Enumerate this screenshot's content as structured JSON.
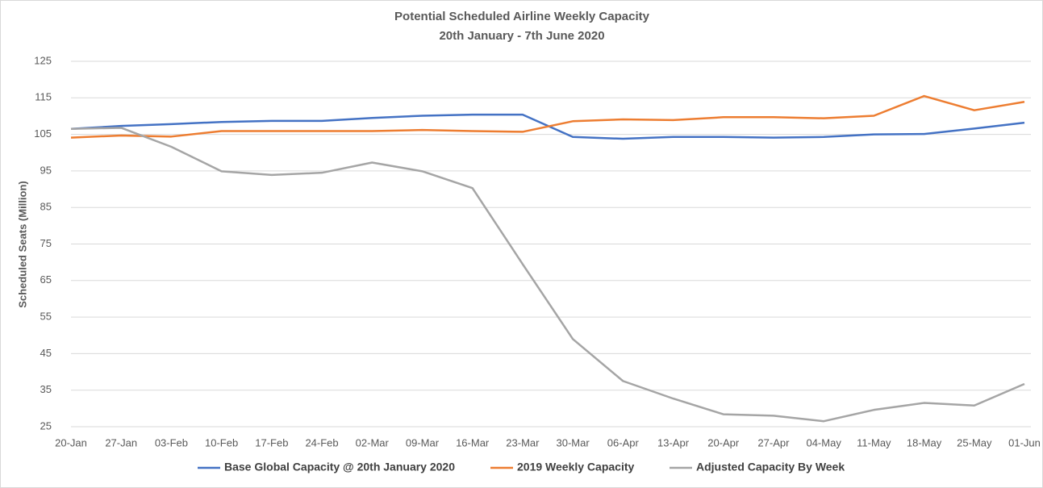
{
  "chart_data": {
    "type": "line",
    "title": "Potential Scheduled Airline Weekly Capacity",
    "subtitle": "20th January - 7th June 2020",
    "y_label": "Scheduled Seats (Million)",
    "categories": [
      "20-Jan",
      "27-Jan",
      "03-Feb",
      "10-Feb",
      "17-Feb",
      "24-Feb",
      "02-Mar",
      "09-Mar",
      "16-Mar",
      "23-Mar",
      "30-Mar",
      "06-Apr",
      "13-Apr",
      "20-Apr",
      "27-Apr",
      "04-May",
      "11-May",
      "18-May",
      "25-May",
      "01-Jun"
    ],
    "series": [
      {
        "name": "Base Global Capacity @ 20th January 2020",
        "color": "#4472c4",
        "values": [
          106.5,
          107.3,
          107.8,
          108.4,
          108.7,
          108.7,
          109.5,
          110.1,
          110.4,
          110.4,
          104.3,
          103.8,
          104.3,
          104.3,
          104.1,
          104.3,
          105.0,
          105.1,
          106.6,
          108.2
        ]
      },
      {
        "name": "2019 Weekly Capacity",
        "color": "#ed7d31",
        "values": [
          104.1,
          104.7,
          104.4,
          105.9,
          105.9,
          105.9,
          105.9,
          106.2,
          105.9,
          105.7,
          108.6,
          109.1,
          108.9,
          109.7,
          109.7,
          109.4,
          110.1,
          115.5,
          111.6,
          113.9
        ]
      },
      {
        "name": "Adjusted Capacity By Week",
        "color": "#a5a5a5",
        "values": [
          106.5,
          106.8,
          101.6,
          94.9,
          93.9,
          94.5,
          97.3,
          94.9,
          90.3,
          69.5,
          49.0,
          37.5,
          32.7,
          28.4,
          28.0,
          26.5,
          29.6,
          31.5,
          30.8,
          36.7
        ]
      }
    ],
    "ylim": [
      25,
      125
    ],
    "yticks": [
      25,
      35,
      45,
      55,
      65,
      75,
      85,
      95,
      105,
      115,
      125
    ],
    "grid": true
  }
}
